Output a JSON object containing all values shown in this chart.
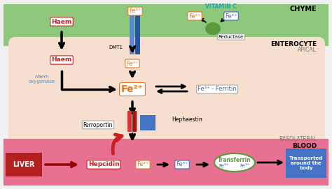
{
  "bg_color": "#f0f0f0",
  "chyme_color": "#8dc87c",
  "chyme_label": "CHYME",
  "enterocyte_color": "#f7dfd0",
  "enterocyte_label": "ENTEROCYTE",
  "apical_label": "APICAL",
  "basolateral_label": "BASOLATERAL",
  "blood_color": "#e87090",
  "blood_label": "BLOOD",
  "liver_color": "#b22020",
  "liver_label": "LIVER",
  "transported_color": "#4472c4",
  "transported_label": "Transported\naround the\nbody",
  "vitamin_c_label": "VITAMIN C",
  "dmt1_label": "DMT1",
  "reductase_label": "Reductase",
  "haem_oxygenase_label": "Haem\noxygenase",
  "ferroportin_label": "Ferroportin",
  "hephaestin_label": "Hephaestin",
  "hepcidin_label": "Hepcidin",
  "ferritin_label": "Fe³⁺ - Ferritin",
  "transferrin_label": "Transferrin",
  "fe2_color": "#e07820",
  "fe3_color": "#4169b0",
  "haem_color": "#cc2020",
  "green_oval_color": "#5a9a3a",
  "blue_rect_color": "#4472c4",
  "red_rect_color": "#cc2020",
  "black_color": "#111111",
  "red_arrow_color": "#cc2020",
  "white": "#ffffff"
}
